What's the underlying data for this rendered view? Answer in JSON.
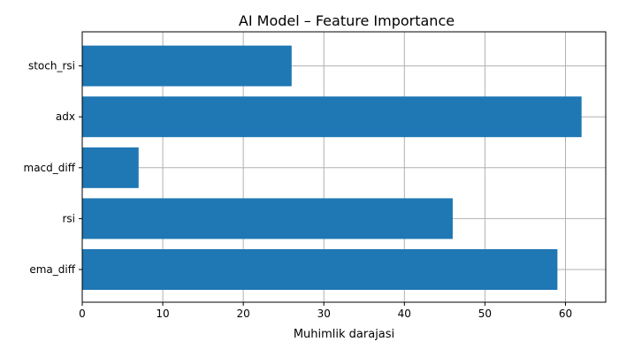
{
  "chart_data": {
    "type": "bar",
    "orientation": "horizontal",
    "title": "AI Model – Feature Importance",
    "xlabel": "Muhimlik darajasi",
    "ylabel": "",
    "categories": [
      "ema_diff",
      "rsi",
      "macd_diff",
      "adx",
      "stoch_rsi"
    ],
    "values": [
      59,
      46,
      7,
      62,
      26
    ],
    "xlim": [
      0,
      65
    ],
    "xticks": [
      0,
      10,
      20,
      30,
      40,
      50,
      60
    ],
    "grid": true,
    "bar_color": "#1f77b4",
    "grid_color": "#b0b0b0"
  }
}
